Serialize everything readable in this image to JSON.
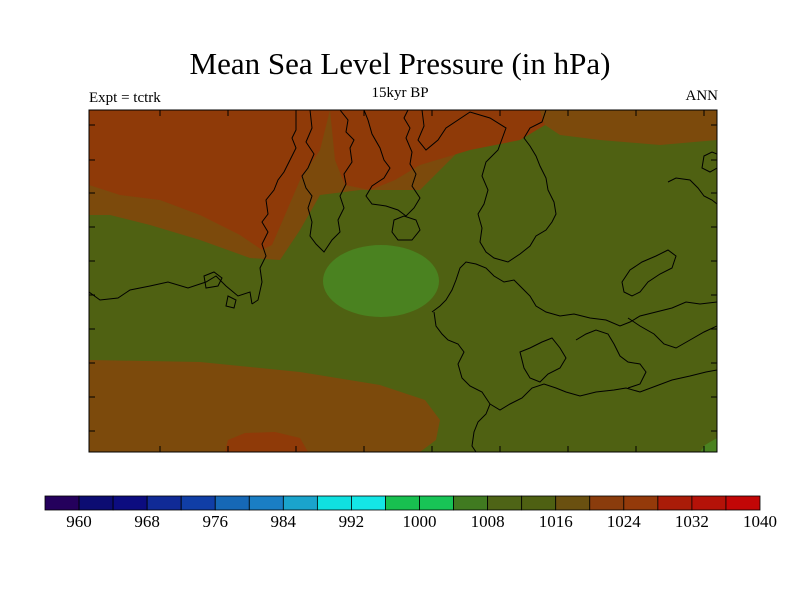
{
  "title": "Mean Sea Level Pressure (in hPa)",
  "subtitle": "15kyr BP",
  "left_label": "Expt = tctrk",
  "right_label": "ANN",
  "colorbar": {
    "colors": [
      "#24005c",
      "#0c0c72",
      "#0c0c80",
      "#102a96",
      "#103ea6",
      "#1668b6",
      "#1a7ec4",
      "#1aa4cc",
      "#10e0e0",
      "#14e6e6",
      "#18c050",
      "#18c456",
      "#407a20",
      "#4e6416",
      "#4e6012",
      "#6a5010",
      "#8a3c0c",
      "#943a0a",
      "#aa1c08",
      "#b41208",
      "#c20606"
    ],
    "tick_labels": [
      "960",
      "968",
      "976",
      "984",
      "992",
      "1000",
      "1008",
      "1016",
      "1024",
      "1032",
      "1040"
    ]
  },
  "map_colors": {
    "background": "#4f6112",
    "high": "#8f3a08",
    "mid_high": "#7c4a0c",
    "low": "#4a8220",
    "coastline": "#000000",
    "frame": "#000000"
  }
}
